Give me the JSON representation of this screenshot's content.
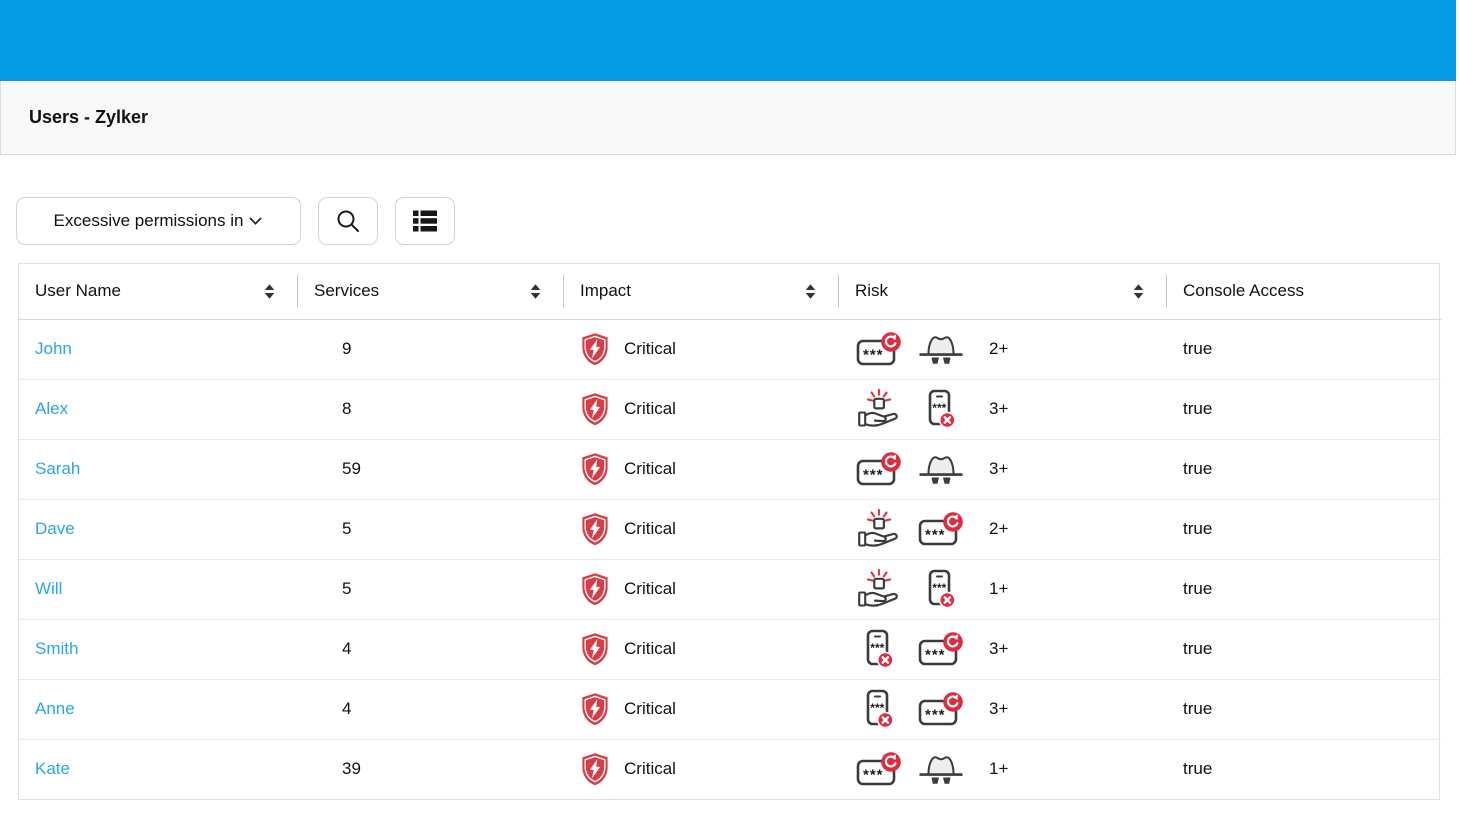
{
  "app": {
    "title": "Users - Zylker"
  },
  "colors": {
    "topbar": "#089ce4",
    "link": "#2aa5e8",
    "critical_red": "#dc3a45",
    "badge_red": "#de2c40"
  },
  "toolbar": {
    "filter": {
      "value": "Excessive permissions in",
      "chevron_icon": "chevron-down-icon"
    },
    "search_icon": "search-icon",
    "list_view_icon": "list-view-icon"
  },
  "table": {
    "columns": [
      {
        "label": "User Name",
        "sortable": true
      },
      {
        "label": "Services",
        "sortable": true
      },
      {
        "label": "Impact",
        "sortable": true
      },
      {
        "label": "Risk",
        "sortable": true
      },
      {
        "label": "Console Access",
        "sortable": false
      }
    ],
    "rows": [
      {
        "user": "John",
        "services": "9",
        "impact": {
          "icon": "critical-shield-icon",
          "label": "Critical"
        },
        "risk": {
          "icons": [
            "password-rotation-icon",
            "spy-icon"
          ],
          "count": "2+"
        },
        "console_access": "true"
      },
      {
        "user": "Alex",
        "services": "8",
        "impact": {
          "icon": "critical-shield-icon",
          "label": "Critical"
        },
        "risk": {
          "icons": [
            "permission-grant-icon",
            "mfa-disabled-icon"
          ],
          "count": "3+"
        },
        "console_access": "true"
      },
      {
        "user": "Sarah",
        "services": "59",
        "impact": {
          "icon": "critical-shield-icon",
          "label": "Critical"
        },
        "risk": {
          "icons": [
            "password-rotation-icon",
            "spy-icon"
          ],
          "count": "3+"
        },
        "console_access": "true"
      },
      {
        "user": "Dave",
        "services": "5",
        "impact": {
          "icon": "critical-shield-icon",
          "label": "Critical"
        },
        "risk": {
          "icons": [
            "permission-grant-icon",
            "password-rotation-icon"
          ],
          "count": "2+"
        },
        "console_access": "true"
      },
      {
        "user": "Will",
        "services": "5",
        "impact": {
          "icon": "critical-shield-icon",
          "label": "Critical"
        },
        "risk": {
          "icons": [
            "permission-grant-icon",
            "mfa-disabled-icon"
          ],
          "count": "1+"
        },
        "console_access": "true"
      },
      {
        "user": "Smith",
        "services": "4",
        "impact": {
          "icon": "critical-shield-icon",
          "label": "Critical"
        },
        "risk": {
          "icons": [
            "mfa-disabled-icon",
            "password-rotation-icon"
          ],
          "count": "3+"
        },
        "console_access": "true"
      },
      {
        "user": "Anne",
        "services": "4",
        "impact": {
          "icon": "critical-shield-icon",
          "label": "Critical"
        },
        "risk": {
          "icons": [
            "mfa-disabled-icon",
            "password-rotation-icon"
          ],
          "count": "3+"
        },
        "console_access": "true"
      },
      {
        "user": "Kate",
        "services": "39",
        "impact": {
          "icon": "critical-shield-icon",
          "label": "Critical"
        },
        "risk": {
          "icons": [
            "password-rotation-icon",
            "spy-icon"
          ],
          "count": "1+"
        },
        "console_access": "true"
      }
    ]
  }
}
